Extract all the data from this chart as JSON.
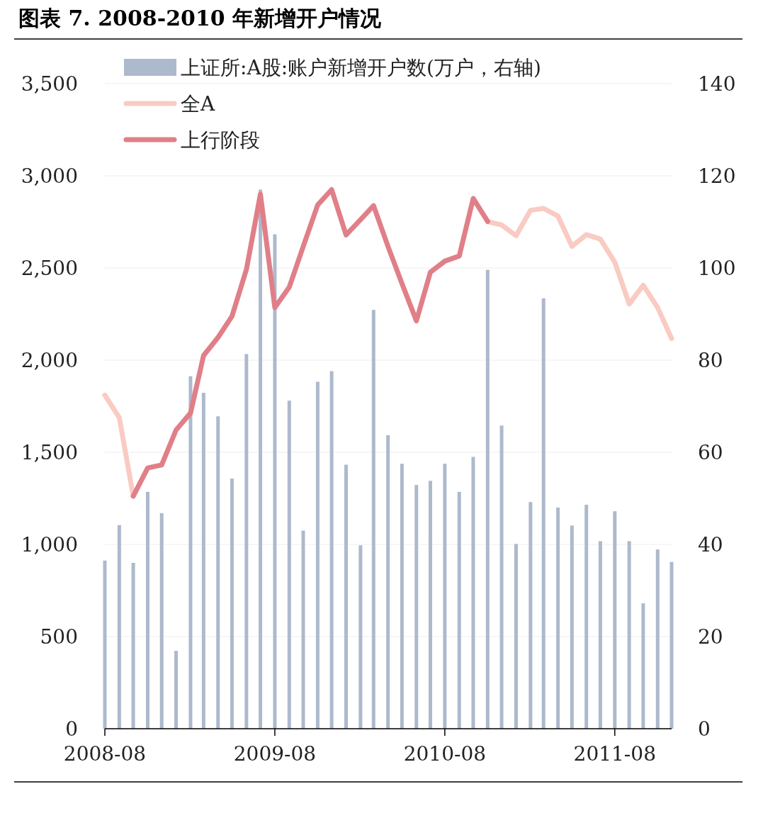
{
  "chart_data": {
    "type": "line",
    "title": "图表 7. 2008-2010 年新增开户情况",
    "x": [
      "2008-08",
      "2008-09",
      "2008-10",
      "2008-11",
      "2008-12",
      "2009-01",
      "2009-02",
      "2009-03",
      "2009-04",
      "2009-05",
      "2009-06",
      "2009-07",
      "2009-08",
      "2009-09",
      "2009-10",
      "2009-11",
      "2009-12",
      "2010-01",
      "2010-02",
      "2010-03",
      "2010-04",
      "2010-05",
      "2010-06",
      "2010-07",
      "2010-08",
      "2010-09",
      "2010-10",
      "2010-11",
      "2010-12",
      "2011-01",
      "2011-02",
      "2011-03",
      "2011-04",
      "2011-05",
      "2011-06",
      "2011-07",
      "2011-08",
      "2011-09",
      "2011-10",
      "2011-11",
      "2011-12"
    ],
    "series": [
      {
        "name": "上证所:A股:账户新增开户数(万户，右轴)",
        "type": "bar",
        "axis": "y2",
        "color": "#adb9cc",
        "values": [
          36.5,
          44.2,
          36.0,
          51.4,
          46.8,
          16.9,
          76.5,
          72.9,
          67.8,
          54.3,
          81.3,
          117,
          107.3,
          71.2,
          43.0,
          75.3,
          77.6,
          57.3,
          39.8,
          90.9,
          63.7,
          57.5,
          52.9,
          53.8,
          57.5,
          51.4,
          59.0,
          99.6,
          65.8,
          40.1,
          49.2,
          93.4,
          48.0,
          44.1,
          48.6,
          40.7,
          47.2,
          40.7,
          27.2,
          38.9,
          36.2
        ]
      },
      {
        "name": "全A",
        "color": "#f9cbc3",
        "values": [
          1810,
          1688,
          1262,
          null,
          null,
          null,
          null,
          null,
          null,
          null,
          null,
          null,
          null,
          null,
          null,
          null,
          null,
          null,
          null,
          null,
          null,
          null,
          null,
          null,
          null,
          null,
          null,
          2752,
          2733,
          2675,
          2813,
          2823,
          2781,
          2617,
          2681,
          2656,
          2531,
          2304,
          2406,
          2285,
          2117
        ]
      },
      {
        "name": "上行阶段",
        "color": "#e07f88",
        "values": [
          null,
          null,
          1262,
          1415,
          1431,
          1621,
          1713,
          2025,
          2123,
          2238,
          2492,
          2900,
          2285,
          2396,
          2617,
          2842,
          2925,
          2679,
          2762,
          2838,
          2617,
          2415,
          2213,
          2477,
          2537,
          2565,
          2877,
          2752,
          null,
          null,
          null,
          null,
          null,
          null,
          null,
          null,
          null,
          null,
          null,
          null,
          null
        ]
      }
    ],
    "xlim": [
      "2008-08",
      "2011-12"
    ],
    "xticks": [
      {
        "value": "2008-08",
        "label": "2008-08"
      },
      {
        "value": "2009-08",
        "label": "2009-08"
      },
      {
        "value": "2010-08",
        "label": "2010-08"
      },
      {
        "value": "2011-08",
        "label": "2011-08"
      }
    ],
    "ylim": [
      0,
      3500
    ],
    "yticks": [
      0,
      {
        "value": 500,
        "label": "500"
      },
      {
        "value": 1000,
        "label": "1,000"
      },
      {
        "value": 1500,
        "label": "1,500"
      },
      {
        "value": 2000,
        "label": "2,000"
      },
      {
        "value": 2500,
        "label": "2,500"
      },
      {
        "value": 3000,
        "label": "3,000"
      },
      {
        "value": 3500,
        "label": "3,500"
      }
    ],
    "y2lim": [
      0,
      140
    ],
    "y2ticks": [
      0,
      20,
      40,
      60,
      80,
      100,
      120,
      140
    ],
    "grid": "y",
    "legend": "top left"
  }
}
